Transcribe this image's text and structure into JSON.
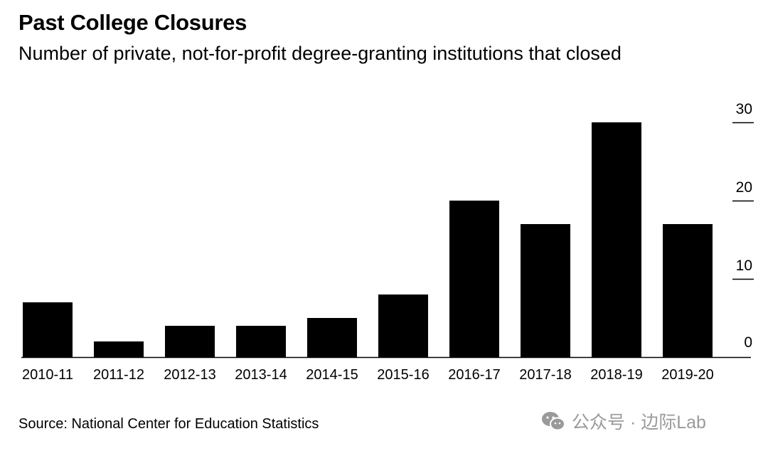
{
  "title": "Past College Closures",
  "subtitle": "Number of private, not-for-profit degree-granting institutions that closed",
  "source": "Source: National Center for Education Statistics",
  "watermark": {
    "text": "公众号 · 边际Lab",
    "icon": "wechat-icon"
  },
  "colors": {
    "bar": "#000000",
    "background": "#ffffff",
    "watermark": "#9a9a9a"
  },
  "chart_data": {
    "type": "bar",
    "title": "Past College Closures",
    "subtitle": "Number of private, not-for-profit degree-granting institutions that closed",
    "categories": [
      "2010-11",
      "2011-12",
      "2012-13",
      "2013-14",
      "2014-15",
      "2015-16",
      "2016-17",
      "2017-18",
      "2018-19",
      "2019-20"
    ],
    "values": [
      7,
      2,
      4,
      4,
      5,
      8,
      20,
      17,
      30,
      17
    ],
    "ylim": [
      0,
      30
    ],
    "yticks": [
      0,
      10,
      20,
      30
    ],
    "ytick_labels": [
      "0",
      "10",
      "20",
      "30"
    ],
    "y_axis_side": "right",
    "xlabel": "",
    "ylabel": "",
    "grid": false
  }
}
